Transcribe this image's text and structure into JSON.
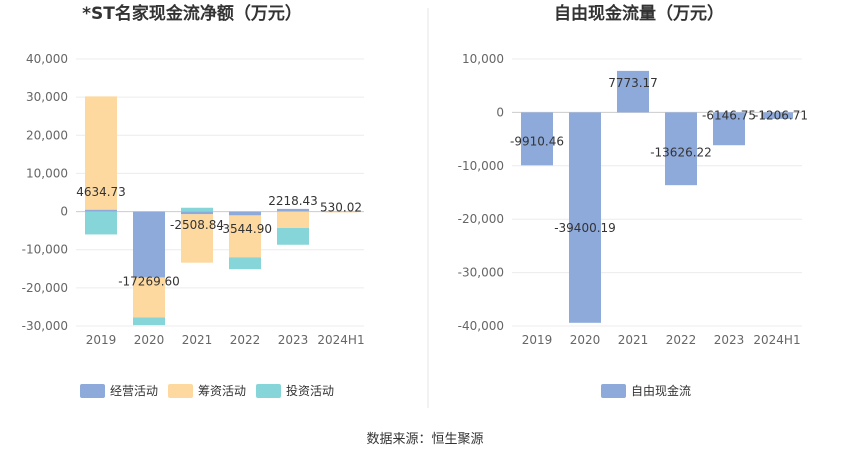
{
  "source_text": "数据来源：恒生聚源",
  "chart_data": [
    {
      "type": "bar",
      "stacked": true,
      "title": "*ST名家现金流净额（万元）",
      "categories": [
        "2019",
        "2020",
        "2021",
        "2022",
        "2023",
        "2024H1"
      ],
      "yticks": [
        "40,000",
        "30,000",
        "20,000",
        "10,000",
        "0",
        "-10,000",
        "-20,000",
        "-30,000"
      ],
      "ylim": [
        -30000,
        40000
      ],
      "grid": true,
      "legend_position": "bottom-left",
      "series": [
        {
          "name": "经营活动",
          "color": "#8eaadb",
          "values": [
            500,
            -17269.6,
            -700,
            -1000,
            700,
            -100
          ]
        },
        {
          "name": "筹资活动",
          "color": "#fdd9a0",
          "values": [
            29700,
            -10500,
            -12700,
            -11000,
            -4300,
            -100
          ]
        },
        {
          "name": "投资活动",
          "color": "#86d6d9",
          "values": [
            -6000,
            -2000,
            1000,
            -3100,
            -4400,
            0
          ]
        }
      ],
      "net_labels": [
        "4634.73",
        "-17269.60",
        "-2508.84",
        "-3544.90",
        "2218.43",
        "530.02"
      ],
      "net_values": [
        4634.73,
        -17269.6,
        -2508.84,
        -3544.9,
        2218.43,
        530.02
      ]
    },
    {
      "type": "bar",
      "title": "自由现金流量（万元）",
      "categories": [
        "2019",
        "2020",
        "2021",
        "2022",
        "2023",
        "2024H1"
      ],
      "yticks": [
        "10,000",
        "0",
        "-10,000",
        "-20,000",
        "-30,000",
        "-40,000"
      ],
      "ylim": [
        -40000,
        10000
      ],
      "grid": true,
      "legend_position": "bottom-center",
      "series": [
        {
          "name": "自由现金流",
          "color": "#8eaadb",
          "values": [
            -9910.46,
            -39400.19,
            7773.17,
            -13626.22,
            -6146.75,
            -1206.71
          ]
        }
      ],
      "value_labels": [
        "-9910.46",
        "-39400.19",
        "7773.17",
        "-13626.22",
        "-6146.75",
        "-1206.71"
      ]
    }
  ]
}
